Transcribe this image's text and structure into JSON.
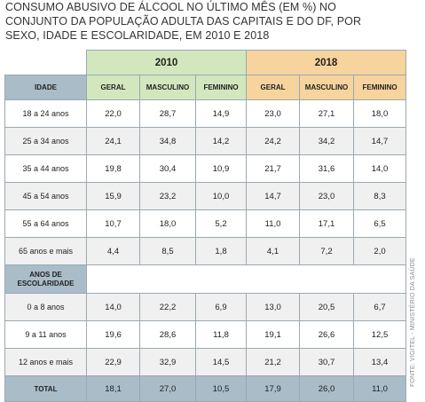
{
  "title": "CONSUMO ABUSIVO DE ÁLCOOL NO ÚLTIMO MÊS (EM %) NO CONJUNTO DA POPULAÇÃO ADULTA DAS CAPITAIS E DO DF, POR SEXO, IDADE E ESCOLARIDADE, EM 2010 E 2018",
  "source": "FONTE: VIGITEL - MINISTÉRIO DA SAÚDE",
  "years": [
    "2010",
    "2018"
  ],
  "columns": {
    "row_header": "IDADE",
    "geral": "GERAL",
    "masculino": "MASCULINO",
    "feminino": "FEMININO"
  },
  "section_label": "ANOS DE ESCOLARIDADE",
  "colors": {
    "y2010": "#d2e7bd",
    "y2018": "#f7d39d",
    "header": "#a9bcc8"
  },
  "rows": [
    {
      "label": "18 a 24 anos",
      "v": [
        "22,0",
        "28,7",
        "14,9",
        "23,0",
        "27,1",
        "18,0"
      ]
    },
    {
      "label": "25 a 34 anos",
      "v": [
        "24,1",
        "34,8",
        "14,2",
        "24,2",
        "34,2",
        "14,7"
      ]
    },
    {
      "label": "35 a 44 anos",
      "v": [
        "19,8",
        "30,4",
        "10,9",
        "21,7",
        "31,6",
        "14,0"
      ]
    },
    {
      "label": "45 a 54 anos",
      "v": [
        "15,9",
        "23,2",
        "10,0",
        "14,7",
        "23,0",
        "8,3"
      ]
    },
    {
      "label": "55 a 64 anos",
      "v": [
        "10,7",
        "18,0",
        "5,2",
        "11,0",
        "17,1",
        "6,5"
      ]
    },
    {
      "label": "65 anos e mais",
      "v": [
        "4,4",
        "8,5",
        "1,8",
        "4,1",
        "7,2",
        "2,0"
      ]
    },
    {
      "label": "0 a 8 anos",
      "v": [
        "14,0",
        "22,2",
        "6,9",
        "13,0",
        "20,5",
        "6,7"
      ]
    },
    {
      "label": "9 a 11 anos",
      "v": [
        "19,6",
        "28,6",
        "11,8",
        "19,1",
        "26,6",
        "12,5"
      ]
    },
    {
      "label": "12 anos e mais",
      "v": [
        "22,9",
        "32,9",
        "14,5",
        "21,2",
        "30,7",
        "13,4"
      ]
    }
  ],
  "total": {
    "label": "TOTAL",
    "v": [
      "18,1",
      "27,0",
      "10,5",
      "17,9",
      "26,0",
      "11,0"
    ]
  }
}
